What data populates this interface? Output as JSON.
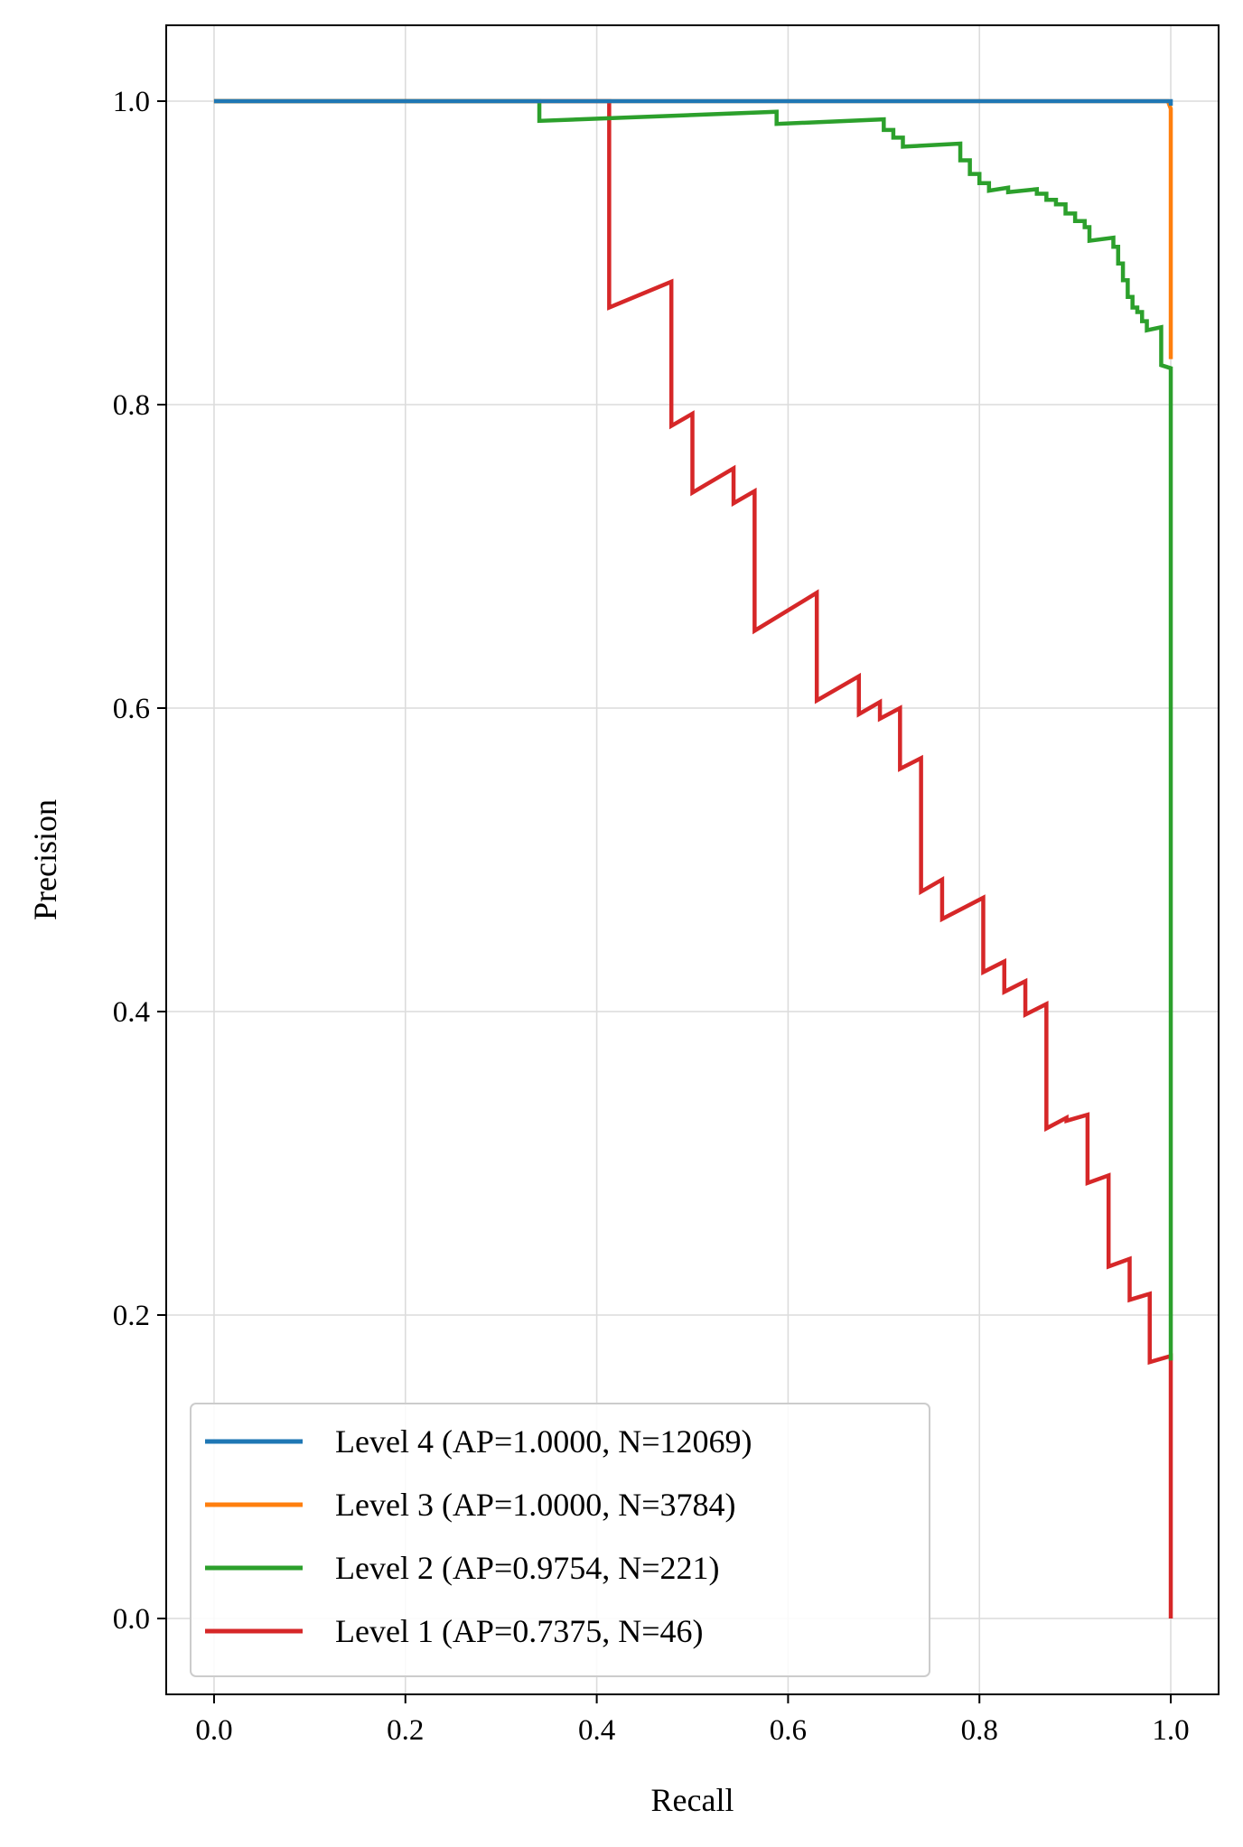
{
  "chart_data": {
    "type": "line",
    "title": "",
    "xlabel": "Recall",
    "ylabel": "Precision",
    "xlim": [
      -0.05,
      1.05
    ],
    "ylim": [
      -0.05,
      1.05
    ],
    "xticks": [
      "0.0",
      "0.2",
      "0.4",
      "0.6",
      "0.8",
      "1.0"
    ],
    "yticks": [
      "0.0",
      "0.2",
      "0.4",
      "0.6",
      "0.8",
      "1.0"
    ],
    "grid": true,
    "legend_position": "lower-left",
    "series": [
      {
        "name": "Level 4 (AP=1.0000, N=12069)",
        "color": "#1f77b4",
        "points": [
          [
            0.0,
            1.0
          ],
          [
            1.0,
            1.0
          ],
          [
            1.0,
            0.997
          ]
        ]
      },
      {
        "name": "Level 3 (AP=1.0000, N=3784)",
        "color": "#ff7f0e",
        "points": [
          [
            0.0,
            1.0
          ],
          [
            0.997,
            1.0
          ],
          [
            1.0,
            0.995
          ],
          [
            1.0,
            0.83
          ]
        ]
      },
      {
        "name": "Level 2 (AP=0.9754, N=221)",
        "color": "#2ca02c",
        "points": [
          [
            0.0,
            1.0
          ],
          [
            0.34,
            1.0
          ],
          [
            0.34,
            0.987
          ],
          [
            0.588,
            0.993
          ],
          [
            0.588,
            0.985
          ],
          [
            0.7,
            0.988
          ],
          [
            0.7,
            0.981
          ],
          [
            0.71,
            0.981
          ],
          [
            0.71,
            0.976
          ],
          [
            0.72,
            0.976
          ],
          [
            0.72,
            0.97
          ],
          [
            0.78,
            0.972
          ],
          [
            0.78,
            0.961
          ],
          [
            0.79,
            0.961
          ],
          [
            0.79,
            0.952
          ],
          [
            0.8,
            0.952
          ],
          [
            0.8,
            0.946
          ],
          [
            0.81,
            0.946
          ],
          [
            0.81,
            0.941
          ],
          [
            0.83,
            0.943
          ],
          [
            0.83,
            0.94
          ],
          [
            0.86,
            0.942
          ],
          [
            0.86,
            0.939
          ],
          [
            0.87,
            0.939
          ],
          [
            0.87,
            0.935
          ],
          [
            0.88,
            0.935
          ],
          [
            0.88,
            0.932
          ],
          [
            0.89,
            0.932
          ],
          [
            0.89,
            0.926
          ],
          [
            0.9,
            0.926
          ],
          [
            0.9,
            0.921
          ],
          [
            0.91,
            0.921
          ],
          [
            0.91,
            0.917
          ],
          [
            0.915,
            0.917
          ],
          [
            0.915,
            0.908
          ],
          [
            0.94,
            0.91
          ],
          [
            0.94,
            0.904
          ],
          [
            0.945,
            0.904
          ],
          [
            0.945,
            0.893
          ],
          [
            0.95,
            0.893
          ],
          [
            0.95,
            0.882
          ],
          [
            0.955,
            0.882
          ],
          [
            0.955,
            0.871
          ],
          [
            0.96,
            0.871
          ],
          [
            0.96,
            0.864
          ],
          [
            0.965,
            0.864
          ],
          [
            0.965,
            0.861
          ],
          [
            0.97,
            0.861
          ],
          [
            0.97,
            0.855
          ],
          [
            0.975,
            0.855
          ],
          [
            0.975,
            0.849
          ],
          [
            0.99,
            0.851
          ],
          [
            0.99,
            0.826
          ],
          [
            1.0,
            0.824
          ],
          [
            1.0,
            0.17
          ]
        ]
      },
      {
        "name": "Level 1 (AP=0.7375, N=46)",
        "color": "#d62728",
        "points": [
          [
            0.0,
            1.0
          ],
          [
            0.413,
            1.0
          ],
          [
            0.413,
            0.864
          ],
          [
            0.478,
            0.881
          ],
          [
            0.478,
            0.786
          ],
          [
            0.5,
            0.794
          ],
          [
            0.5,
            0.742
          ],
          [
            0.543,
            0.758
          ],
          [
            0.543,
            0.735
          ],
          [
            0.565,
            0.743
          ],
          [
            0.565,
            0.651
          ],
          [
            0.63,
            0.676
          ],
          [
            0.63,
            0.605
          ],
          [
            0.674,
            0.621
          ],
          [
            0.674,
            0.596
          ],
          [
            0.696,
            0.604
          ],
          [
            0.696,
            0.593
          ],
          [
            0.717,
            0.6
          ],
          [
            0.717,
            0.56
          ],
          [
            0.739,
            0.567
          ],
          [
            0.739,
            0.479
          ],
          [
            0.761,
            0.487
          ],
          [
            0.761,
            0.461
          ],
          [
            0.804,
            0.475
          ],
          [
            0.804,
            0.426
          ],
          [
            0.826,
            0.433
          ],
          [
            0.826,
            0.413
          ],
          [
            0.848,
            0.42
          ],
          [
            0.848,
            0.398
          ],
          [
            0.87,
            0.405
          ],
          [
            0.87,
            0.323
          ],
          [
            0.891,
            0.33
          ],
          [
            0.891,
            0.328
          ],
          [
            0.913,
            0.332
          ],
          [
            0.913,
            0.287
          ],
          [
            0.935,
            0.292
          ],
          [
            0.935,
            0.232
          ],
          [
            0.957,
            0.237
          ],
          [
            0.957,
            0.21
          ],
          [
            0.978,
            0.214
          ],
          [
            0.978,
            0.169
          ],
          [
            1.0,
            0.173
          ],
          [
            1.0,
            0.0
          ]
        ]
      }
    ]
  }
}
